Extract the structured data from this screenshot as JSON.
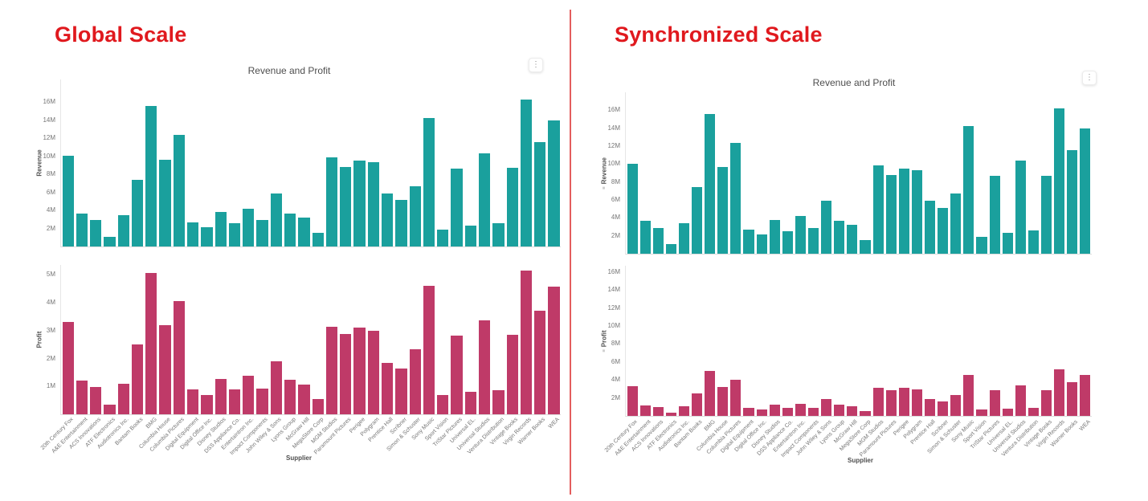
{
  "theme": {
    "heading_color": "#e0191e",
    "divider_color": "#e45d5d",
    "revenue_color": "#1aa09d",
    "profit_color": "#bf3a68",
    "axis_text_color": "#757575"
  },
  "icons": {
    "more_options_glyph": "⋮",
    "axis_sync_glyph": "≡"
  },
  "panels": [
    {
      "id": "global",
      "heading": "Global Scale",
      "chart_title": "Revenue and Profit",
      "xaxis_title": "Supplier",
      "subplots": [
        {
          "series": "Revenue",
          "ylabel": "Revenue",
          "sync_icon": false,
          "ylim_m": [
            0,
            18.5
          ],
          "yticks": [
            {
              "v": 2,
              "label": "2M"
            },
            {
              "v": 4,
              "label": "4M"
            },
            {
              "v": 6,
              "label": "6M"
            },
            {
              "v": 8,
              "label": "8M"
            },
            {
              "v": 10,
              "label": "10M"
            },
            {
              "v": 12,
              "label": "12M"
            },
            {
              "v": 14,
              "label": "14M"
            },
            {
              "v": 16,
              "label": "16M"
            }
          ]
        },
        {
          "series": "Profit",
          "ylabel": "Profit",
          "sync_icon": false,
          "ylim_m": [
            0,
            5.35
          ],
          "yticks": [
            {
              "v": 1,
              "label": "1M"
            },
            {
              "v": 2,
              "label": "2M"
            },
            {
              "v": 3,
              "label": "3M"
            },
            {
              "v": 4,
              "label": "4M"
            },
            {
              "v": 5,
              "label": "5M"
            }
          ]
        }
      ]
    },
    {
      "id": "synchronized",
      "heading": "Synchronized Scale",
      "chart_title": "Revenue and Profit",
      "xaxis_title": "Supplier",
      "subplots": [
        {
          "series": "Revenue",
          "ylabel": "Revenue",
          "sync_icon": true,
          "ylim_m": [
            0,
            18.0
          ],
          "yticks": [
            {
              "v": 2,
              "label": "2M"
            },
            {
              "v": 4,
              "label": "4M"
            },
            {
              "v": 6,
              "label": "6M"
            },
            {
              "v": 8,
              "label": "8M"
            },
            {
              "v": 10,
              "label": "10M"
            },
            {
              "v": 12,
              "label": "12M"
            },
            {
              "v": 14,
              "label": "14M"
            },
            {
              "v": 16,
              "label": "16M"
            }
          ]
        },
        {
          "series": "Profit",
          "ylabel": "Profit",
          "sync_icon": true,
          "ylim_m": [
            0,
            16.7
          ],
          "yticks": [
            {
              "v": 2,
              "label": "2M"
            },
            {
              "v": 4,
              "label": "4M"
            },
            {
              "v": 6,
              "label": "6M"
            },
            {
              "v": 8,
              "label": "8M"
            },
            {
              "v": 10,
              "label": "10M"
            },
            {
              "v": 12,
              "label": "12M"
            },
            {
              "v": 14,
              "label": "14M"
            },
            {
              "v": 16,
              "label": "16M"
            }
          ]
        }
      ]
    }
  ],
  "chart_data": {
    "type": "bar",
    "title": "Revenue and Profit",
    "xlabel": "Supplier",
    "grid": false,
    "legend": "none",
    "unit": "millions",
    "categories": [
      "20th Century Fox",
      "A&E Entertainment",
      "ACS Innovations",
      "ATF Electronics",
      "Audiotronics Inc.",
      "Bantam Books",
      "BMG",
      "Columbia House",
      "Columbia Pictures",
      "Digital Equipment",
      "Digital Office Inc.",
      "Disney Studios",
      "DSS Appliance Co.",
      "Entertaintron Inc.",
      "Impact Components",
      "John Wiley & Sons",
      "Lyons Group",
      "McGraw Hill",
      "MegaStore Corp",
      "MGM Studios",
      "Paramount Pictures",
      "Perigee",
      "Polygram",
      "Prentice Hall",
      "Scribner",
      "Simon & Schuster",
      "Sony Music",
      "Sport Vision",
      "TriStar Pictures",
      "Universal EL.",
      "Universal Studios",
      "Ventura Distribution",
      "Vintage Books",
      "Virgin Records",
      "Warner Books",
      "WEA"
    ],
    "series": [
      {
        "name": "Revenue",
        "color": "#1aa09d",
        "values_m": [
          10.05,
          3.65,
          2.9,
          1.1,
          3.45,
          7.4,
          15.6,
          9.65,
          12.35,
          2.7,
          2.15,
          3.8,
          2.55,
          4.2,
          2.9,
          5.9,
          3.65,
          3.2,
          1.5,
          9.85,
          8.8,
          9.5,
          9.3,
          5.9,
          5.15,
          6.7,
          14.2,
          1.9,
          8.65,
          2.35,
          10.35,
          2.6,
          8.7,
          16.25,
          11.6,
          14.0
        ]
      },
      {
        "name": "Profit",
        "color": "#bf3a68",
        "values_m": [
          3.3,
          1.2,
          0.97,
          0.35,
          1.1,
          2.5,
          5.05,
          3.2,
          4.05,
          0.88,
          0.68,
          1.27,
          0.9,
          1.37,
          0.92,
          1.9,
          1.24,
          1.08,
          0.54,
          3.15,
          2.88,
          3.12,
          2.98,
          1.85,
          1.63,
          2.32,
          4.6,
          0.68,
          2.82,
          0.82,
          3.38,
          0.86,
          2.85,
          5.15,
          3.72,
          4.57
        ]
      }
    ]
  }
}
